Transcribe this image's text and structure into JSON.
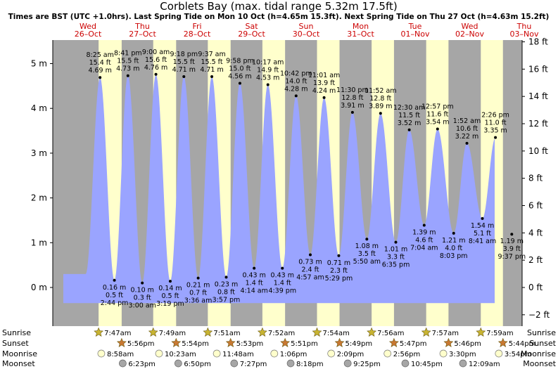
{
  "chart_data": {
    "type": "area",
    "title": "Corblets Bay (max. tidal range 5.32m 17.5ft)",
    "subtitle": "Times are BST (UTC +1.0hrs). Last Spring Tide on Mon 10 Oct (h=4.65m 15.3ft). Next Spring Tide on Thu 27 Oct (h=4.63m 15.2ft)",
    "days": [
      {
        "dow": "Wed",
        "date": "26–Oct"
      },
      {
        "dow": "Thu",
        "date": "27–Oct"
      },
      {
        "dow": "Fri",
        "date": "28–Oct"
      },
      {
        "dow": "Sat",
        "date": "29–Oct"
      },
      {
        "dow": "Sun",
        "date": "30–Oct"
      },
      {
        "dow": "Mon",
        "date": "31–Oct"
      },
      {
        "dow": "Tue",
        "date": "01–Nov"
      },
      {
        "dow": "Wed",
        "date": "02–Nov"
      },
      {
        "dow": "Thu",
        "date": "03–Nov"
      }
    ],
    "yaxis_left": {
      "unit": "m",
      "ticks": [
        "0 m",
        "1 m",
        "2 m",
        "3 m",
        "4 m",
        "5 m"
      ],
      "range": [
        -0.8,
        5.5
      ]
    },
    "yaxis_right": {
      "unit": "ft",
      "ticks": [
        "−2 ft",
        "0 ft",
        "2 ft",
        "4 ft",
        "6 ft",
        "8 ft",
        "10 ft",
        "12 ft",
        "14 ft",
        "16 ft",
        "18 ft"
      ]
    },
    "tides": [
      {
        "type": "high",
        "time": "8:25 am",
        "m": 4.69,
        "ft": "15.4 ft",
        "h": "4.69 m",
        "day": 0
      },
      {
        "type": "low",
        "time": "2:44 pm",
        "m": 0.16,
        "ft": "0.5 ft",
        "h": "0.16 m",
        "day": 0
      },
      {
        "type": "high",
        "time": "8:41 pm",
        "m": 4.73,
        "ft": "15.5 ft",
        "h": "4.73 m",
        "day": 0
      },
      {
        "type": "low",
        "time": "3:00 am",
        "m": 0.1,
        "ft": "0.3 ft",
        "h": "0.10 m",
        "day": 1
      },
      {
        "type": "high",
        "time": "9:00 am",
        "m": 4.76,
        "ft": "15.6 ft",
        "h": "4.76 m",
        "day": 1
      },
      {
        "type": "low",
        "time": "3:19 pm",
        "m": 0.14,
        "ft": "0.5 ft",
        "h": "0.14 m",
        "day": 1
      },
      {
        "type": "high",
        "time": "9:18 pm",
        "m": 4.71,
        "ft": "15.5 ft",
        "h": "4.71 m",
        "day": 1
      },
      {
        "type": "low",
        "time": "3:36 am",
        "m": 0.21,
        "ft": "0.7 ft",
        "h": "0.21 m",
        "day": 2
      },
      {
        "type": "high",
        "time": "9:37 am",
        "m": 4.71,
        "ft": "15.5 ft",
        "h": "4.71 m",
        "day": 2
      },
      {
        "type": "low",
        "time": "3:57 pm",
        "m": 0.23,
        "ft": "0.8 ft",
        "h": "0.23 m",
        "day": 2
      },
      {
        "type": "high",
        "time": "9:58 pm",
        "m": 4.56,
        "ft": "15.0 ft",
        "h": "4.56 m",
        "day": 2
      },
      {
        "type": "low",
        "time": "4:14 am",
        "m": 0.43,
        "ft": "1.4 ft",
        "h": "0.43 m",
        "day": 3
      },
      {
        "type": "high",
        "time": "10:17 am",
        "m": 4.53,
        "ft": "14.9 ft",
        "h": "4.53 m",
        "day": 3
      },
      {
        "type": "low",
        "time": "4:39 pm",
        "m": 0.43,
        "ft": "1.4 ft",
        "h": "0.43 m",
        "day": 3
      },
      {
        "type": "high",
        "time": "10:42 pm",
        "m": 4.28,
        "ft": "14.0 ft",
        "h": "4.28 m",
        "day": 3
      },
      {
        "type": "low",
        "time": "4:57 am",
        "m": 0.73,
        "ft": "2.4 ft",
        "h": "0.73 m",
        "day": 4
      },
      {
        "type": "high",
        "time": "11:01 am",
        "m": 4.24,
        "ft": "13.9 ft",
        "h": "4.24 m",
        "day": 4
      },
      {
        "type": "low",
        "time": "5:29 pm",
        "m": 0.71,
        "ft": "2.3 ft",
        "h": "0.71 m",
        "day": 4
      },
      {
        "type": "high",
        "time": "11:30 pm",
        "m": 3.91,
        "ft": "12.8 ft",
        "h": "3.91 m",
        "day": 4
      },
      {
        "type": "low",
        "time": "5:50 am",
        "m": 1.08,
        "ft": "3.5 ft",
        "h": "1.08 m",
        "day": 5
      },
      {
        "type": "high",
        "time": "11:52 am",
        "m": 3.89,
        "ft": "12.8 ft",
        "h": "3.89 m",
        "day": 5
      },
      {
        "type": "low",
        "time": "6:35 pm",
        "m": 1.01,
        "ft": "3.3 ft",
        "h": "1.01 m",
        "day": 5
      },
      {
        "type": "high",
        "time": "12:30 am",
        "m": 3.52,
        "ft": "11.5 ft",
        "h": "3.52 m",
        "day": 6
      },
      {
        "type": "low",
        "time": "7:04 am",
        "m": 1.39,
        "ft": "4.6 ft",
        "h": "1.39 m",
        "day": 6
      },
      {
        "type": "high",
        "time": "12:57 pm",
        "m": 3.54,
        "ft": "11.6 ft",
        "h": "3.54 m",
        "day": 6
      },
      {
        "type": "low",
        "time": "8:03 pm",
        "m": 1.21,
        "ft": "4.0 ft",
        "h": "1.21 m",
        "day": 6
      },
      {
        "type": "high",
        "time": "1:52 am",
        "m": 3.22,
        "ft": "10.6 ft",
        "h": "3.22 m",
        "day": 7
      },
      {
        "type": "low",
        "time": "8:41 am",
        "m": 1.54,
        "ft": "5.1 ft",
        "h": "1.54 m",
        "day": 7
      },
      {
        "type": "high",
        "time": "2:26 pm",
        "m": 3.35,
        "ft": "11.0 ft",
        "h": "3.35 m",
        "day": 7
      },
      {
        "type": "low",
        "time": "9:37 pm",
        "m": 1.19,
        "ft": "3.9 ft",
        "h": "1.19 m",
        "day": 7
      }
    ],
    "astro": {
      "row_labels": [
        "Sunrise",
        "Sunset",
        "Moonrise",
        "Moonset"
      ],
      "sunrise": [
        {
          "day": 0,
          "time": "7:47am"
        },
        {
          "day": 1,
          "time": "7:49am"
        },
        {
          "day": 2,
          "time": "7:51am"
        },
        {
          "day": 3,
          "time": "7:52am"
        },
        {
          "day": 4,
          "time": "7:54am"
        },
        {
          "day": 5,
          "time": "7:56am"
        },
        {
          "day": 6,
          "time": "7:57am"
        },
        {
          "day": 7,
          "time": "7:59am"
        }
      ],
      "sunset": [
        {
          "day": 0,
          "time": "5:56pm"
        },
        {
          "day": 1,
          "time": "5:54pm"
        },
        {
          "day": 2,
          "time": "5:53pm"
        },
        {
          "day": 3,
          "time": "5:51pm"
        },
        {
          "day": 4,
          "time": "5:49pm"
        },
        {
          "day": 5,
          "time": "5:47pm"
        },
        {
          "day": 6,
          "time": "5:46pm"
        },
        {
          "day": 7,
          "time": "5:44pm"
        }
      ],
      "moonrise": [
        {
          "day": 0,
          "time": "8:58am"
        },
        {
          "day": 1,
          "time": "10:23am"
        },
        {
          "day": 2,
          "time": "11:48am"
        },
        {
          "day": 3,
          "time": "1:06pm"
        },
        {
          "day": 4,
          "time": "2:09pm"
        },
        {
          "day": 5,
          "time": "2:56pm"
        },
        {
          "day": 6,
          "time": "3:30pm"
        },
        {
          "day": 7,
          "time": "3:54pm"
        }
      ],
      "moonset": [
        {
          "day": 0,
          "time": "6:23pm"
        },
        {
          "day": 1,
          "time": "6:50pm"
        },
        {
          "day": 2,
          "time": "7:27pm"
        },
        {
          "day": 3,
          "time": "8:18pm"
        },
        {
          "day": 4,
          "time": "9:25pm"
        },
        {
          "day": 5,
          "time": "10:45pm"
        },
        {
          "day": 7,
          "time": "12:09am"
        }
      ]
    },
    "colors": {
      "night": "#a6a6a6",
      "day": "#ffffcc",
      "water": "#9aa4ff",
      "day_label": "#cc0000",
      "sun": "#c8b432",
      "sunset": "#c87832",
      "moonrise": "#ffffcc",
      "moonset": "#a6a6a6"
    },
    "grid": false
  }
}
